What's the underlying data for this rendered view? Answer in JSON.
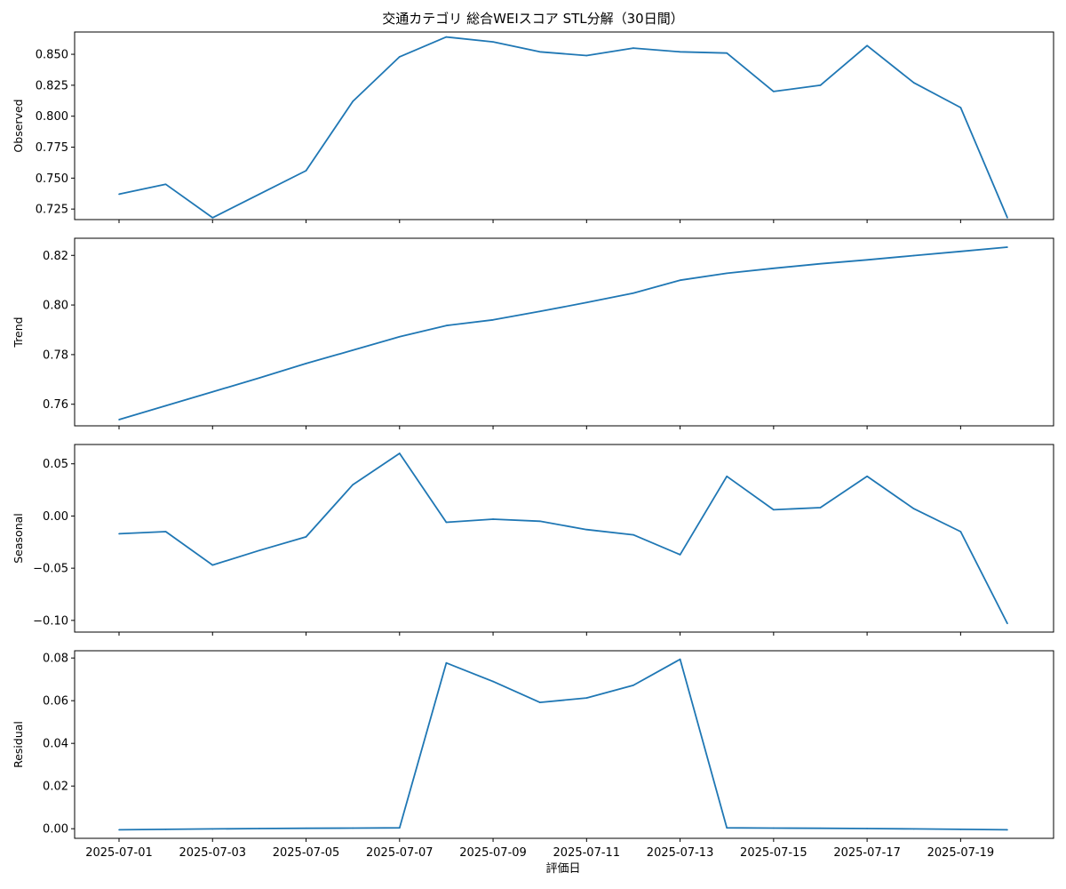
{
  "chart_data": {
    "type": "line",
    "title": "交通カテゴリ 総合WEIスコア STL分解（30日間）",
    "xlabel": "評価日",
    "x": [
      "2025-07-01",
      "2025-07-02",
      "2025-07-03",
      "2025-07-04",
      "2025-07-05",
      "2025-07-06",
      "2025-07-07",
      "2025-07-08",
      "2025-07-09",
      "2025-07-10",
      "2025-07-11",
      "2025-07-12",
      "2025-07-13",
      "2025-07-14",
      "2025-07-15",
      "2025-07-16",
      "2025-07-17",
      "2025-07-18",
      "2025-07-19",
      "2025-07-20"
    ],
    "xticks": [
      "2025-07-01",
      "2025-07-03",
      "2025-07-05",
      "2025-07-07",
      "2025-07-09",
      "2025-07-11",
      "2025-07-13",
      "2025-07-15",
      "2025-07-17",
      "2025-07-19"
    ],
    "line_color": "#1f77b4",
    "grid": false,
    "panels": [
      {
        "name": "Observed",
        "ylabel": "Observed",
        "ylim": [
          0.7165,
          0.868
        ],
        "yticks": [
          "0.725",
          "0.750",
          "0.775",
          "0.800",
          "0.825",
          "0.850"
        ],
        "values": [
          0.737,
          0.745,
          0.718,
          0.737,
          0.756,
          0.812,
          0.848,
          0.864,
          0.86,
          0.852,
          0.849,
          0.855,
          0.852,
          0.851,
          0.82,
          0.825,
          0.857,
          0.827,
          0.807,
          0.718
        ]
      },
      {
        "name": "Trend",
        "ylabel": "Trend",
        "ylim": [
          0.7513,
          0.8269
        ],
        "yticks": [
          "0.76",
          "0.78",
          "0.80",
          "0.82"
        ],
        "values": [
          0.7538,
          0.7594,
          0.765,
          0.7706,
          0.7764,
          0.7818,
          0.7872,
          0.7917,
          0.794,
          0.7974,
          0.801,
          0.8048,
          0.81,
          0.8128,
          0.8148,
          0.8166,
          0.8182,
          0.8199,
          0.8216,
          0.8233
        ]
      },
      {
        "name": "Seasonal",
        "ylabel": "Seasonal",
        "ylim": [
          -0.1112,
          0.0685
        ],
        "yticks": [
          "0.05",
          "0.00",
          "−0.05",
          "−0.10"
        ],
        "values": [
          -0.017,
          -0.015,
          -0.047,
          -0.033,
          -0.02,
          0.03,
          0.06,
          -0.006,
          -0.003,
          -0.005,
          -0.013,
          -0.018,
          -0.037,
          0.038,
          0.006,
          0.008,
          0.038,
          0.007,
          -0.015,
          -0.103
        ]
      },
      {
        "name": "Residual",
        "ylabel": "Residual",
        "ylim": [
          -0.0045,
          0.0834
        ],
        "yticks": [
          "0.00",
          "0.02",
          "0.04",
          "0.06",
          "0.08"
        ],
        "values": [
          -0.0005,
          -0.0003,
          -0.0001,
          0.0001,
          0.0002,
          0.0003,
          0.0004,
          0.0777,
          0.069,
          0.0592,
          0.0613,
          0.0672,
          0.0794,
          0.0004,
          0.0003,
          0.0002,
          0.0001,
          -0.0001,
          -0.0003,
          -0.0005
        ]
      }
    ]
  }
}
